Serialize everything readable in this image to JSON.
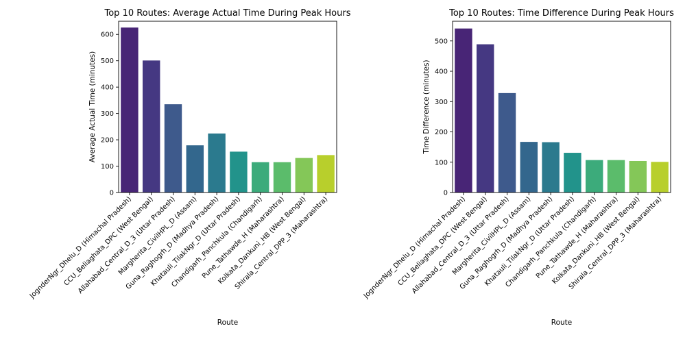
{
  "colors": [
    "#482576",
    "#453882",
    "#3e5a8c",
    "#33678d",
    "#2b7a8e",
    "#22938b",
    "#3cab7b",
    "#5bbc6b",
    "#84c758",
    "#b8cf2c"
  ],
  "chart_data": [
    {
      "type": "bar",
      "title": "Top 10 Routes: Average Actual Time During Peak Hours",
      "xlabel": "Route",
      "ylabel": "Average Actual Time (minutes)",
      "categories": [
        "JognderNgr_Dhelu_D (Himachal Pradesh)",
        "CCU_Beliaghata_DPC (West Bengal)",
        "Allahabad_Central_D_3 (Uttar Pradesh)",
        "Margherita_CivilHPL_D (Assam)",
        "Guna_Raghogrh_D (Madhya Pradesh)",
        "Khatauli_TilakNgr_D (Uttar Pradesh)",
        "Chandigarh_Panchkula (Chandigarh)",
        "Pune_Tathawde_H (Maharashtra)",
        "Kolkata_Dankuni_HB (West Bengal)",
        "Shirala_Central_DPP_3 (Maharashtra)"
      ],
      "values": [
        626,
        501,
        335,
        179,
        224,
        155,
        115,
        115,
        131,
        142
      ],
      "ylim": [
        0,
        650
      ],
      "yticks": [
        0,
        100,
        200,
        300,
        400,
        500,
        600
      ]
    },
    {
      "type": "bar",
      "title": "Top 10 Routes: Time Difference During Peak Hours",
      "xlabel": "Route",
      "ylabel": "Time Difference (minutes)",
      "categories": [
        "JognderNgr_Dhelu_D (Himachal Pradesh)",
        "CCU_Beliaghata_DPC (West Bengal)",
        "Allahabad_Central_D_3 (Uttar Pradesh)",
        "Margherita_CivilHPL_D (Assam)",
        "Guna_Raghogrh_D (Madhya Pradesh)",
        "Khatauli_TilakNgr_D (Uttar Pradesh)",
        "Chandigarh_Panchkula (Chandigarh)",
        "Pune_Tathawde_H (Maharashtra)",
        "Kolkata_Dankuni_HB (West Bengal)",
        "Shirala_Central_DPP_3 (Maharashtra)"
      ],
      "values": [
        541,
        489,
        328,
        167,
        166,
        131,
        107,
        107,
        104,
        101
      ],
      "ylim": [
        0,
        565
      ],
      "yticks": [
        0,
        100,
        200,
        300,
        400,
        500
      ]
    }
  ]
}
